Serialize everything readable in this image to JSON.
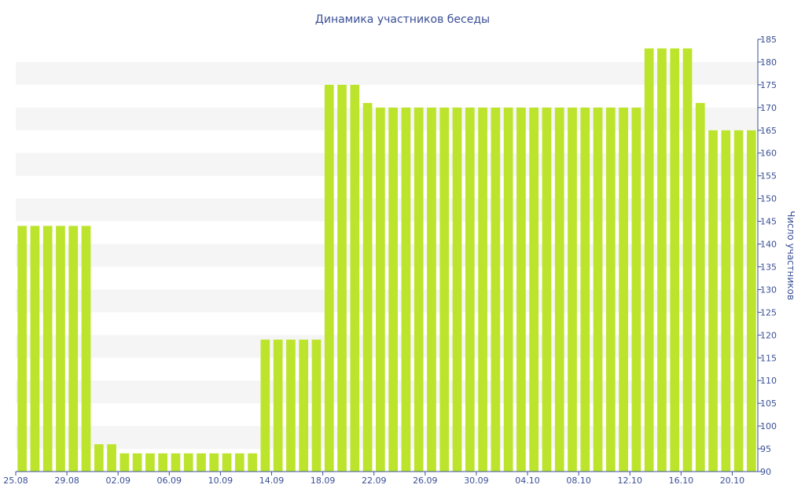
{
  "chart_data": {
    "type": "bar",
    "title": "Динамика участников беседы",
    "xlabel": "",
    "ylabel": "Число участников",
    "ylim": [
      90,
      185
    ],
    "ytick_step": 5,
    "y_axis_side": "right",
    "grid": "alternating horizontal bands",
    "bar_color": "#bde42d",
    "band_color": "#f5f5f5",
    "text_color": "#3a4f96",
    "categories": [
      "25.08",
      "26.08",
      "27.08",
      "28.08",
      "29.08",
      "30.08",
      "31.08",
      "01.09",
      "02.09",
      "03.09",
      "04.09",
      "05.09",
      "06.09",
      "07.09",
      "08.09",
      "09.09",
      "10.09",
      "11.09",
      "12.09",
      "13.09",
      "14.09",
      "15.09",
      "16.09",
      "17.09",
      "18.09",
      "19.09",
      "20.09",
      "21.09",
      "22.09",
      "23.09",
      "24.09",
      "25.09",
      "26.09",
      "27.09",
      "28.09",
      "29.09",
      "30.09",
      "01.10",
      "02.10",
      "03.10",
      "04.10",
      "05.10",
      "06.10",
      "07.10",
      "08.10",
      "09.10",
      "10.10",
      "11.10",
      "12.10",
      "13.10",
      "14.10",
      "15.10",
      "16.10",
      "17.10",
      "18.10",
      "19.10",
      "20.10",
      "21.10"
    ],
    "values": [
      144,
      144,
      144,
      144,
      144,
      144,
      96,
      96,
      94,
      94,
      94,
      94,
      94,
      94,
      94,
      94,
      94,
      94,
      94,
      119,
      119,
      119,
      119,
      119,
      175,
      175,
      175,
      171,
      170,
      170,
      170,
      170,
      170,
      170,
      170,
      170,
      170,
      170,
      170,
      170,
      170,
      170,
      170,
      170,
      170,
      170,
      170,
      170,
      170,
      183,
      183,
      183,
      183,
      171,
      165,
      165,
      165,
      165
    ],
    "x_tick_labels": [
      "25.08",
      "29.08",
      "02.09",
      "06.09",
      "10.09",
      "14.09",
      "18.09",
      "22.09",
      "26.09",
      "30.09",
      "04.10",
      "08.10",
      "12.10",
      "16.10",
      "20.10"
    ]
  }
}
